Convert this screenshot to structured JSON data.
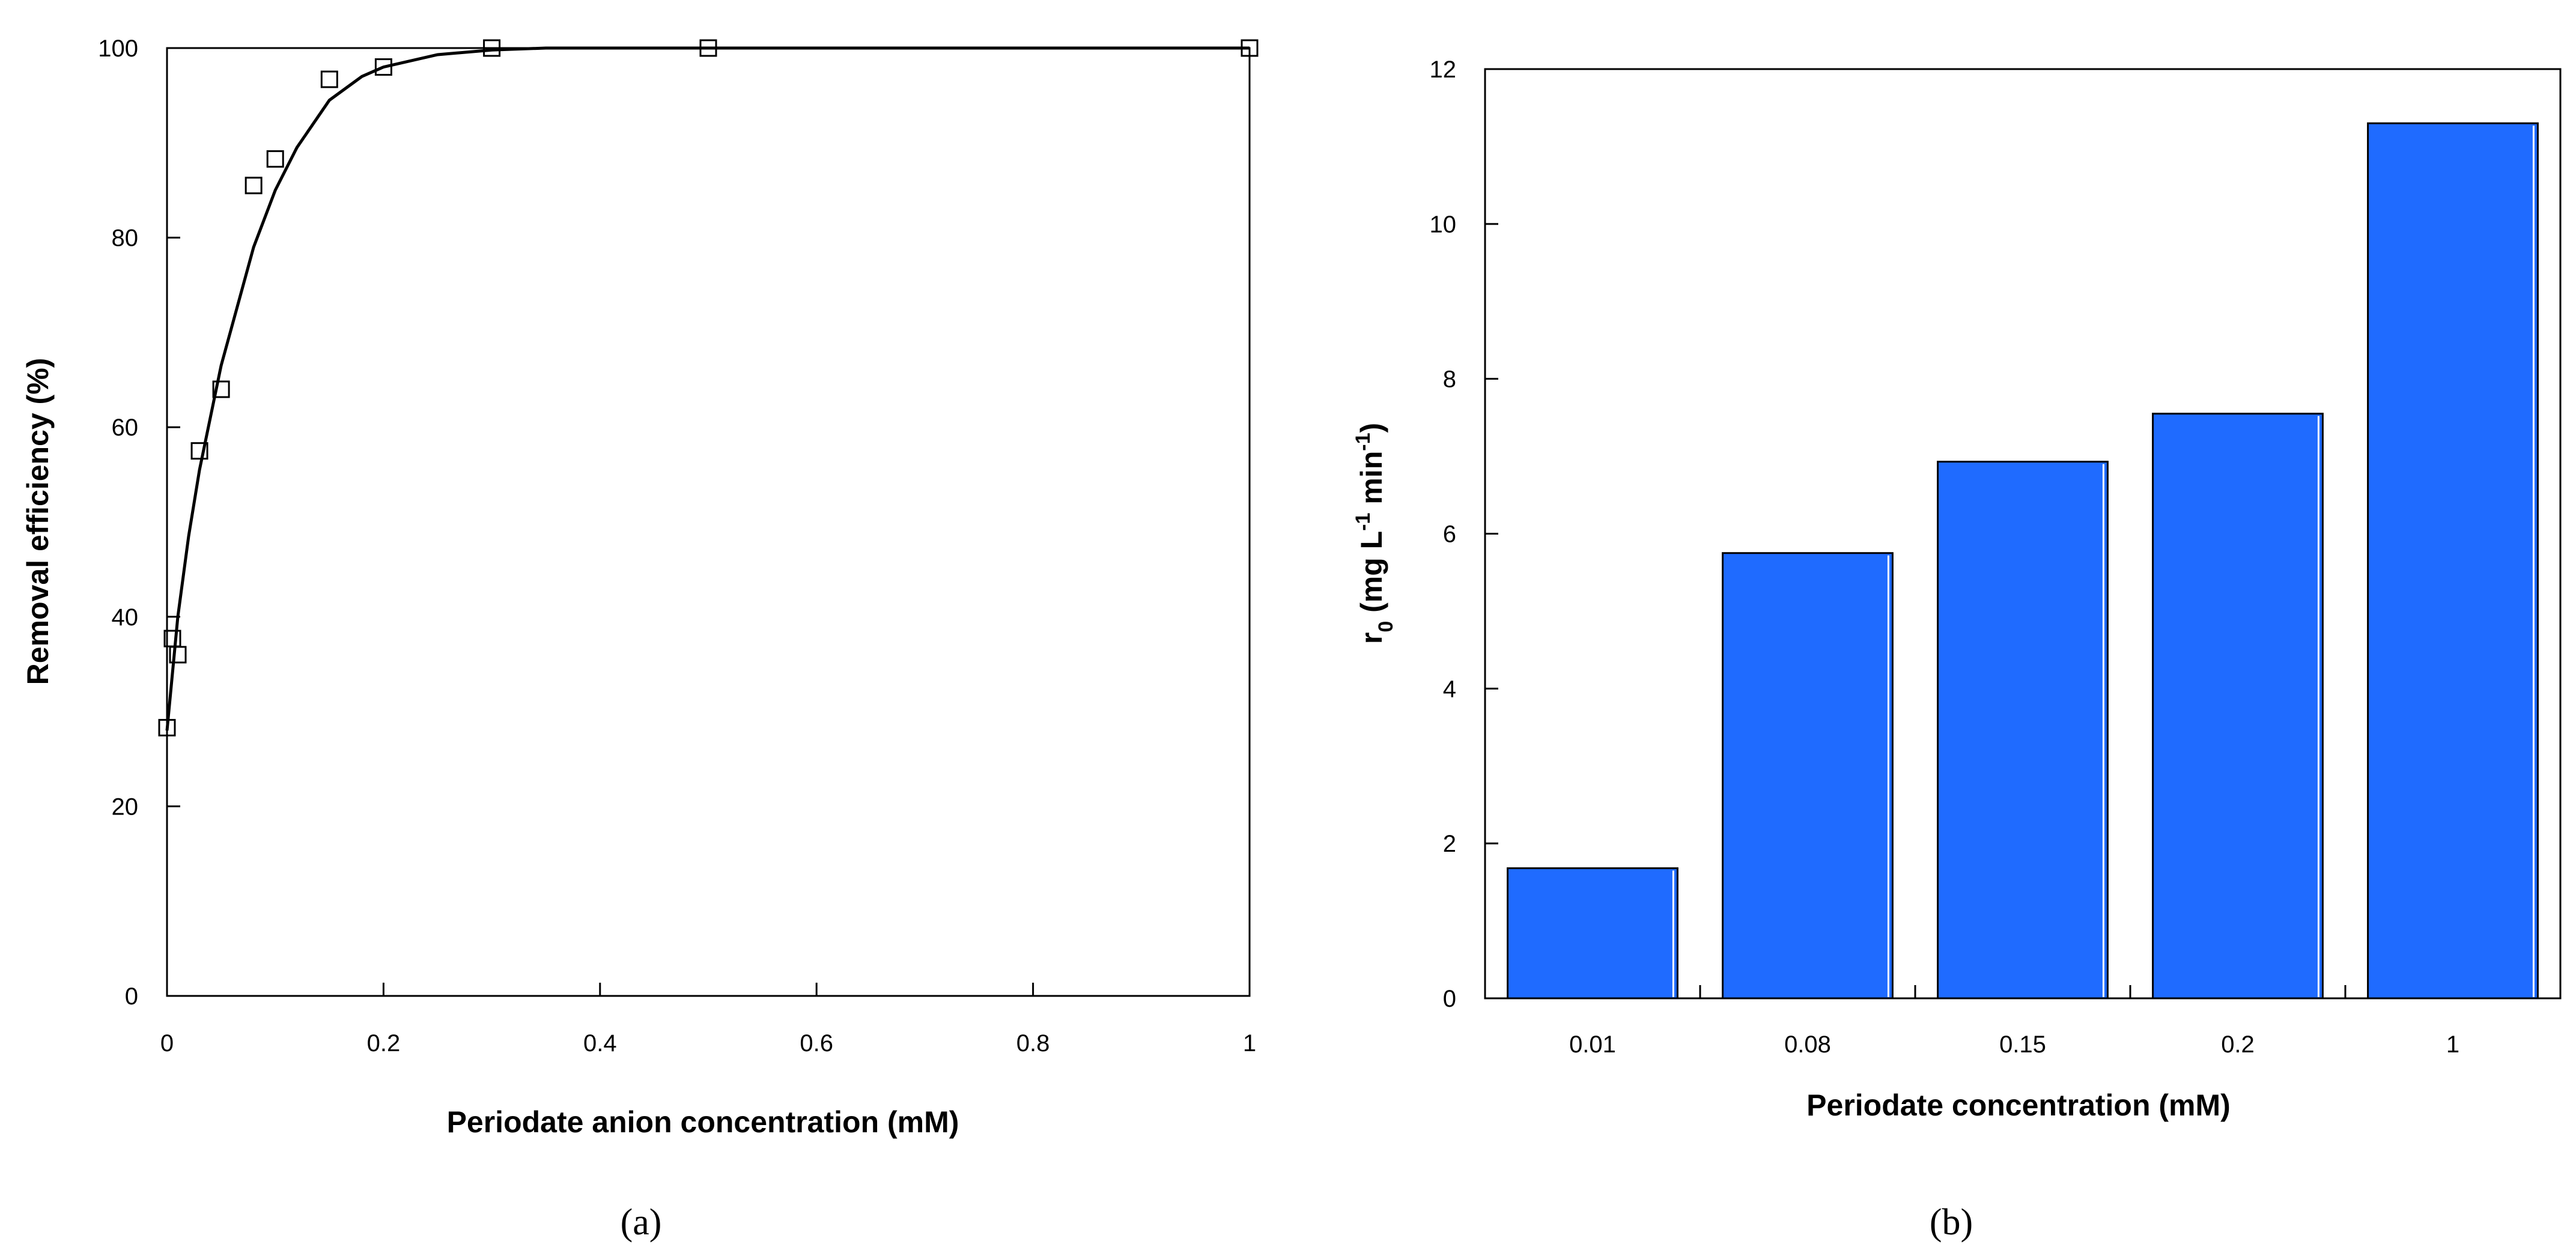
{
  "chart_data": [
    {
      "type": "scatter",
      "panel_label": "(a)",
      "xlabel": "Periodate anion concentration (mM)",
      "ylabel": "Removal efficiency (%)",
      "xlim": [
        0,
        1
      ],
      "ylim": [
        0,
        100
      ],
      "xticks": [
        0,
        0.2,
        0.4,
        0.6,
        0.8,
        1
      ],
      "xtick_labels": [
        "0",
        "0.2",
        "0.4",
        "0.6",
        "0.8",
        "1"
      ],
      "yticks": [
        0,
        20,
        40,
        60,
        80,
        100
      ],
      "ytick_labels": [
        "0",
        "20",
        "40",
        "60",
        "80",
        "100"
      ],
      "grid": false,
      "series": [
        {
          "marker": "open-square",
          "x": [
            0,
            0.005,
            0.01,
            0.03,
            0.05,
            0.08,
            0.1,
            0.15,
            0.2,
            0.3,
            0.5,
            1
          ],
          "y": [
            28.3,
            37.7,
            36.0,
            57.5,
            64.0,
            85.5,
            88.3,
            96.7,
            98.0,
            100,
            100,
            100
          ]
        },
        {
          "line": "fitted-curve",
          "x": [
            0,
            0.01,
            0.02,
            0.03,
            0.05,
            0.08,
            0.1,
            0.12,
            0.15,
            0.18,
            0.2,
            0.25,
            0.3,
            0.35,
            0.5,
            1
          ],
          "y": [
            28,
            40,
            48.5,
            55.5,
            66.5,
            79,
            85,
            89.5,
            94.5,
            97,
            98,
            99.3,
            99.8,
            100,
            100,
            100
          ]
        }
      ]
    },
    {
      "type": "bar",
      "panel_label": "(b)",
      "xlabel": "Periodate concentration (mM)",
      "ylabel_main": "r",
      "ylabel_sub": "0",
      "ylabel_units_1": " (mg L",
      "ylabel_sup_1": "-1",
      "ylabel_units_2": " min",
      "ylabel_sup_2": "-1",
      "ylabel_close": ")",
      "categories": [
        "0.01",
        "0.08",
        "0.15",
        "0.2",
        "1"
      ],
      "values": [
        1.68,
        5.75,
        6.93,
        7.55,
        11.3
      ],
      "ylim": [
        0,
        12
      ],
      "yticks": [
        0,
        2,
        4,
        6,
        8,
        10,
        12
      ],
      "ytick_labels": [
        "0",
        "2",
        "4",
        "6",
        "8",
        "10",
        "12"
      ],
      "bar_color": "#1f6bff",
      "grid": false
    }
  ]
}
